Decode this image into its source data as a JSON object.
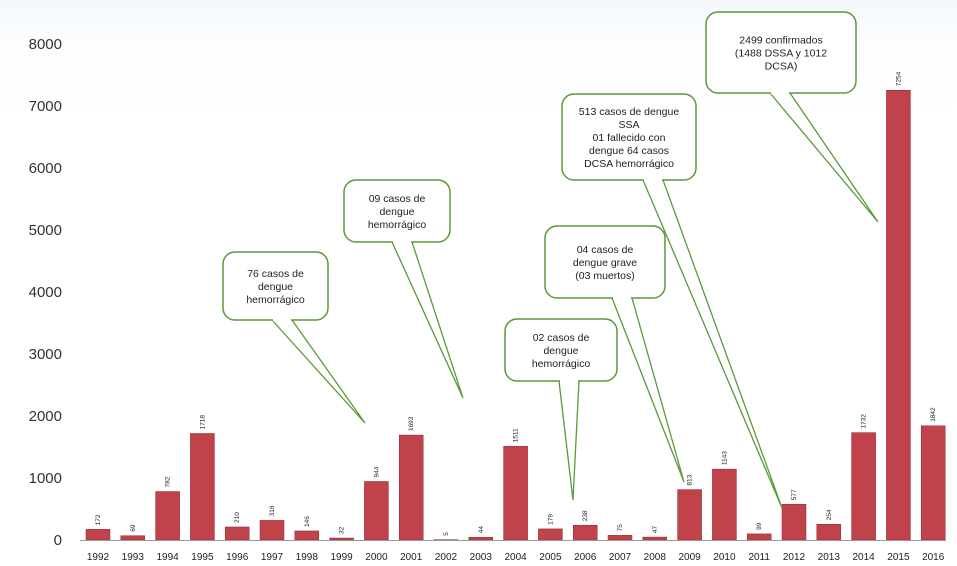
{
  "chart_data": {
    "type": "bar",
    "title": "",
    "xlabel": "",
    "ylabel": "",
    "ylim": [
      0,
      8000
    ],
    "yticks": [
      "0",
      "1000",
      "2000",
      "3000",
      "4000",
      "5000",
      "6000",
      "7000",
      "8000"
    ],
    "grid": false,
    "bar_color": "#c0424a",
    "categories": [
      "1992",
      "1993",
      "1994",
      "1995",
      "1996",
      "1997",
      "1998",
      "1999",
      "2000",
      "2001",
      "2002",
      "2003",
      "2004",
      "2005",
      "2006",
      "2007",
      "2008",
      "2009",
      "2010",
      "2011",
      "2012",
      "2013",
      "2014",
      "2015",
      "2016"
    ],
    "values": [
      172,
      69,
      782,
      1718,
      210,
      316,
      146,
      32,
      944,
      1693,
      5,
      44,
      1511,
      179,
      238,
      75,
      47,
      813,
      1143,
      99,
      577,
      254,
      1732,
      7254,
      1842
    ],
    "annotations": [
      {
        "year": "2000",
        "lines": [
          "76 casos de",
          "dengue",
          "hemorrágico"
        ]
      },
      {
        "year": "2002",
        "lines": [
          "09 casos de",
          "dengue",
          "hemorrágico"
        ]
      },
      {
        "year": "2006",
        "lines": [
          "02 casos de",
          "dengue",
          "hemorrágico"
        ]
      },
      {
        "year": "2009",
        "lines": [
          "04  casos de",
          "dengue grave",
          "(03 muertos)"
        ]
      },
      {
        "year": "2011",
        "lines": [
          "513  casos de dengue",
          "SSA",
          "01 fallecido con",
          "dengue 64 casos",
          "DCSA hemorrágico"
        ]
      },
      {
        "year": "2015",
        "lines": [
          "2499 confirmados",
          "(1488 DSSA y 1012",
          "DCSA)"
        ]
      }
    ],
    "callout_color": "#5a9a3a"
  }
}
